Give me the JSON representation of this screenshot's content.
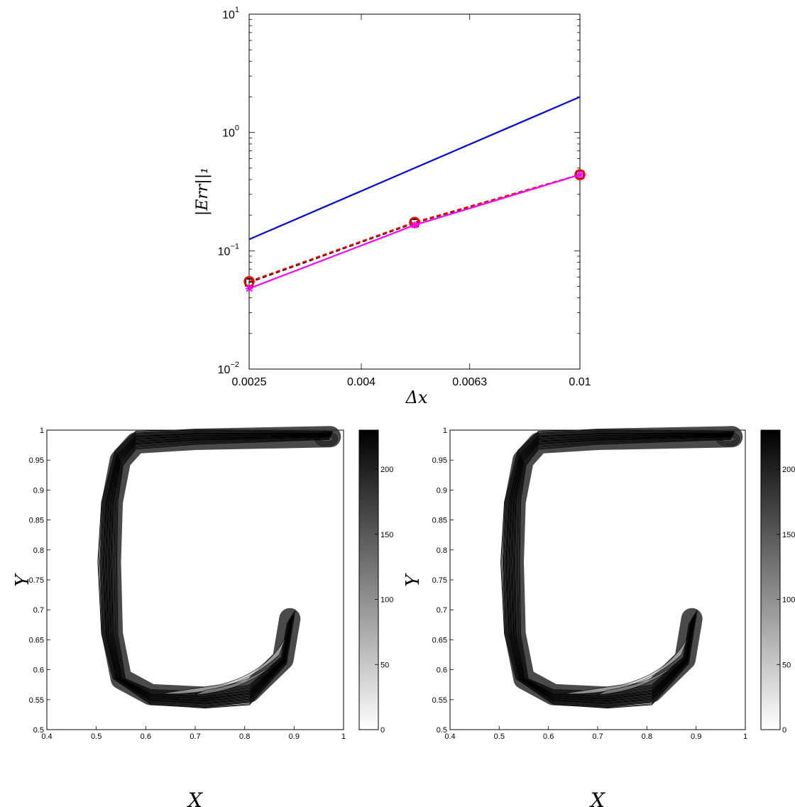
{
  "colors": {
    "slope_line": "#0000dd",
    "dashed_black": "#000000",
    "dashed_red": "#ff0000",
    "magenta": "#ff00ff",
    "contour": "#000000"
  },
  "chart_data": [
    {
      "type": "line",
      "log_y": true,
      "xlabel": "Δx",
      "ylabel": "|Err||₁",
      "xlim": [
        0.0025,
        0.01
      ],
      "ylim": [
        0.01,
        10
      ],
      "xticks": [
        "0.0025",
        "0.004",
        "0.0063",
        "0.01"
      ],
      "yticks": [
        {
          "base": "10",
          "exp": "1"
        },
        {
          "base": "10",
          "exp": "0"
        },
        {
          "base": "10",
          "exp": "−1"
        },
        {
          "base": "10",
          "exp": "−2"
        }
      ],
      "series": [
        {
          "style": "solid",
          "color": "#0000dd",
          "marker": "none",
          "x": [
            0.0025,
            0.005,
            0.01
          ],
          "y": [
            0.125,
            0.5,
            2.0
          ]
        },
        {
          "style": "dashed",
          "color": "#000000",
          "marker": "square",
          "x": [
            0.0025,
            0.005,
            0.01
          ],
          "y": [
            0.054,
            0.172,
            0.44
          ]
        },
        {
          "style": "dashed",
          "color": "#ff0000",
          "marker": "circle",
          "x": [
            0.0025,
            0.005,
            0.01
          ],
          "y": [
            0.055,
            0.174,
            0.44
          ]
        },
        {
          "style": "solid",
          "color": "#ff00ff",
          "marker": "star",
          "x": [
            0.0025,
            0.005,
            0.01
          ],
          "y": [
            0.048,
            0.165,
            0.44
          ]
        }
      ]
    },
    {
      "type": "contour",
      "xlabel": "X",
      "ylabel": "Y",
      "xlim": [
        0.4,
        1
      ],
      "ylim": [
        0.5,
        1
      ],
      "xticks": [
        "0.4",
        "0.5",
        "0.6",
        "0.7",
        "0.8",
        "0.9",
        "1"
      ],
      "yticks": [
        "1",
        "0.95",
        "0.9",
        "0.85",
        "0.8",
        "0.75",
        "0.7",
        "0.65",
        "0.6",
        "0.55",
        "0.5"
      ],
      "colorbar": {
        "range": [
          0,
          230
        ],
        "ticks": [
          "200",
          "150",
          "100",
          "50",
          "0"
        ]
      }
    },
    {
      "type": "contour",
      "xlabel": "X",
      "ylabel": "Y",
      "xlim": [
        0.4,
        1
      ],
      "ylim": [
        0.5,
        1
      ],
      "xticks": [
        "0.4",
        "0.5",
        "0.6",
        "0.7",
        "0.8",
        "0.9",
        "1"
      ],
      "yticks": [
        "1",
        "0.95",
        "0.9",
        "0.85",
        "0.8",
        "0.75",
        "0.7",
        "0.65",
        "0.6",
        "0.55",
        "0.5"
      ],
      "colorbar": {
        "range": [
          0,
          230
        ],
        "ticks": [
          "200",
          "150",
          "100",
          "50",
          "0"
        ]
      }
    }
  ]
}
